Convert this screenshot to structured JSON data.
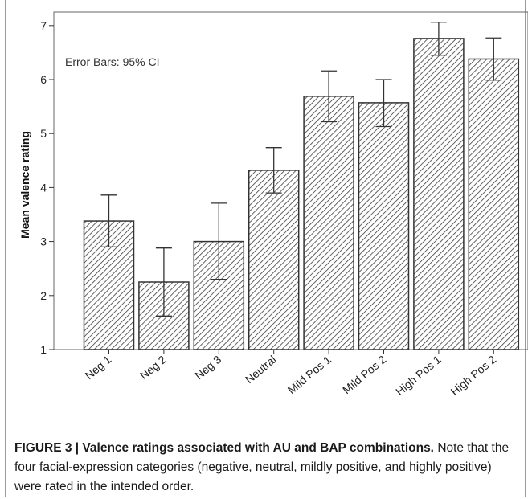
{
  "chart_data": {
    "type": "bar",
    "categories": [
      "Neg 1",
      "Neg 2",
      "Neg 3",
      "Neutral",
      "Mild Pos 1",
      "Mild Pos 2",
      "High Pos 1",
      "High Pos 2"
    ],
    "values": [
      3.38,
      2.25,
      3.0,
      4.32,
      5.69,
      5.57,
      6.76,
      6.38
    ],
    "error_lower": [
      2.9,
      1.62,
      2.3,
      3.9,
      5.22,
      5.13,
      6.45,
      5.99
    ],
    "error_upper": [
      3.86,
      2.88,
      3.71,
      4.74,
      6.16,
      6.0,
      7.06,
      6.77
    ],
    "xlabel": "",
    "ylabel": "Mean valence rating",
    "ylim": [
      1,
      7.25
    ],
    "yticks": [
      1,
      2,
      3,
      4,
      5,
      6,
      7
    ],
    "annotation": "Error Bars: 95% CI",
    "grid": false,
    "bar_fill": "hatched",
    "bar_color": "#333333"
  },
  "caption": {
    "title": "FIGURE 3 | Valence ratings associated with AU and BAP combinations.",
    "text": "Note that the four facial-expression categories (negative, neutral, mildly positive, and highly positive) were rated in the intended order."
  }
}
